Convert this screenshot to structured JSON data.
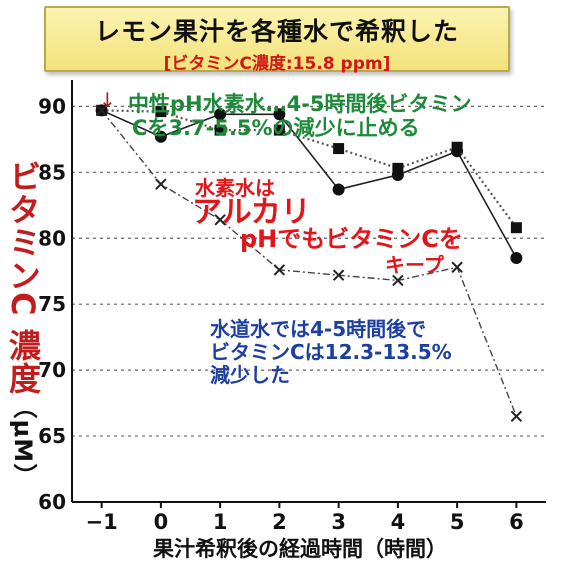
{
  "header": {
    "title": "レモン果汁を各種水で希釈した",
    "subtitle": "[ビタミンC濃度:15.8 ppm]"
  },
  "annotations": {
    "arrow": "↓",
    "neutral_note_line1": "中性pH水素水…4-5時間後ビタミン",
    "neutral_note_line2": "Cを3.7-5.5%の減少に止める",
    "hydrogen_line1": "水素水は",
    "hydrogen_line2": "アルカリ",
    "hydrogen_line3": "pHでもビタミンCを",
    "hydrogen_line4": "キープ",
    "tap_line1": "水道水では4-5時間後で",
    "tap_line2": "ビタミンCは12.3-13.5%",
    "tap_line3": "減少した"
  },
  "colors": {
    "title_text": "#111111",
    "subtitle_text": "#d01818",
    "green_note": "#1d8a3a",
    "red_note": "#e0161b",
    "blue_note": "#1c3fa0",
    "ylabel": "#c21c1c"
  },
  "chart_data": {
    "type": "line",
    "ylabel": "ビタミンC 濃度",
    "ylabel_unit": "（μM）",
    "xlabel": "果汁希釈後の経過時間（時間）",
    "x": [
      -1,
      0,
      1,
      2,
      3,
      4,
      5,
      6
    ],
    "x_tick_labels": [
      "−1",
      "0",
      "1",
      "2",
      "3",
      "4",
      "5",
      "6"
    ],
    "ylim": [
      60,
      92
    ],
    "y_ticks": [
      60,
      65,
      70,
      75,
      80,
      85,
      90
    ],
    "grid": true,
    "series": [
      {
        "marker": "circle",
        "line": "solid",
        "values": [
          89.7,
          87.7,
          89.4,
          89.4,
          83.7,
          84.8,
          86.6,
          78.5
        ]
      },
      {
        "marker": "square",
        "line": "dotted",
        "values": [
          89.7,
          89.6,
          88.2,
          88.2,
          86.8,
          85.3,
          86.9,
          80.8
        ]
      },
      {
        "marker": "cross",
        "line": "dashdot",
        "values": [
          89.7,
          84.1,
          81.4,
          77.6,
          77.2,
          76.8,
          77.8,
          66.5
        ]
      }
    ]
  }
}
